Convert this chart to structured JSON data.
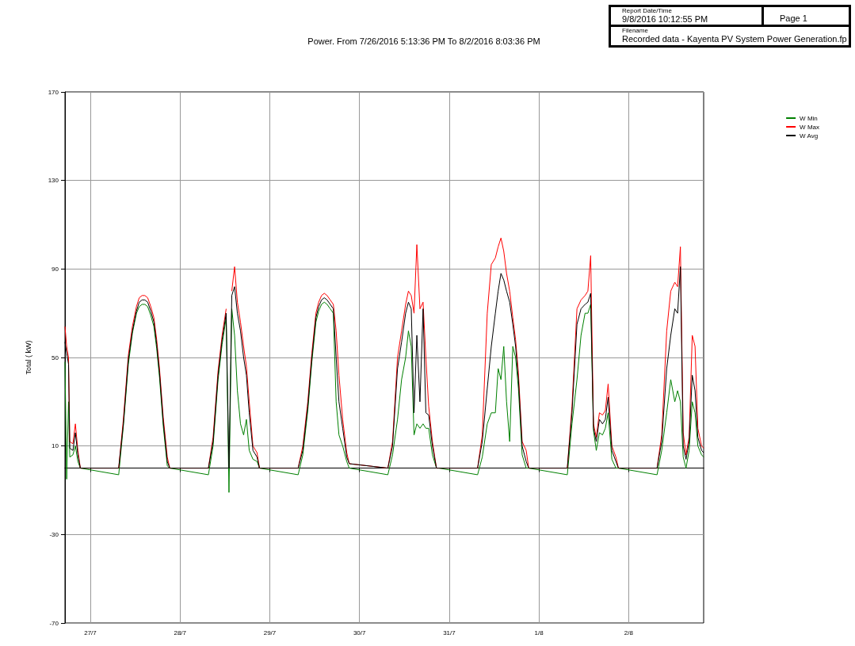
{
  "chart_data": {
    "type": "line",
    "title": "Power. From 7/26/2016 5:13:36 PM To 8/2/2016 8:03:36 PM",
    "ylabel": "Total ( kW)",
    "annotations": [
      "Report Date/Time",
      "9/8/2016 10:12:55 PM",
      "Page 1",
      "Filename",
      "Recorded data - Kayenta PV System Power Generation.fp"
    ],
    "x": [
      "2016-07-26T17:13",
      "2016-07-26T17:40",
      "2016-07-26T18:10",
      "2016-07-26T18:30",
      "2016-07-26T19:20",
      "2016-07-26T20:00",
      "2016-07-26T20:40",
      "2016-07-26T21:20",
      "2016-07-27T07:35",
      "2016-07-27T08:50",
      "2016-07-27T10:10",
      "2016-07-27T11:15",
      "2016-07-27T12:20",
      "2016-07-27T13:05",
      "2016-07-27T13:50",
      "2016-07-27T14:35",
      "2016-07-27T15:20",
      "2016-07-27T16:10",
      "2016-07-27T17:00",
      "2016-07-27T17:45",
      "2016-07-27T18:30",
      "2016-07-27T19:30",
      "2016-07-27T20:35",
      "2016-07-27T21:15",
      "2016-07-28T07:35",
      "2016-07-28T08:50",
      "2016-07-28T10:10",
      "2016-07-28T11:15",
      "2016-07-28T12:20",
      "2016-07-28T13:05",
      "2016-07-28T13:50",
      "2016-07-28T14:35",
      "2016-07-28T15:20",
      "2016-07-28T16:10",
      "2016-07-28T17:00",
      "2016-07-28T17:45",
      "2016-07-28T18:30",
      "2016-07-28T19:30",
      "2016-07-28T20:35",
      "2016-07-28T21:15",
      "2016-07-29T07:35",
      "2016-07-29T08:50",
      "2016-07-29T10:10",
      "2016-07-29T11:15",
      "2016-07-29T12:20",
      "2016-07-29T13:05",
      "2016-07-29T13:50",
      "2016-07-29T14:35",
      "2016-07-29T15:20",
      "2016-07-29T16:10",
      "2016-07-29T17:00",
      "2016-07-29T17:45",
      "2016-07-29T18:30",
      "2016-07-29T19:30",
      "2016-07-29T20:35",
      "2016-07-29T21:15",
      "2016-07-30T07:35",
      "2016-07-30T08:50",
      "2016-07-30T10:10",
      "2016-07-30T11:15",
      "2016-07-30T12:20",
      "2016-07-30T13:05",
      "2016-07-30T13:50",
      "2016-07-30T14:35",
      "2016-07-30T15:20",
      "2016-07-30T16:10",
      "2016-07-30T17:00",
      "2016-07-30T17:45",
      "2016-07-30T18:30",
      "2016-07-30T19:30",
      "2016-07-30T20:35",
      "2016-07-30T21:15",
      "2016-07-31T07:35",
      "2016-07-31T08:50",
      "2016-07-31T10:10",
      "2016-07-31T11:15",
      "2016-07-31T12:20",
      "2016-07-31T13:05",
      "2016-07-31T13:50",
      "2016-07-31T14:35",
      "2016-07-31T15:20",
      "2016-07-31T16:10",
      "2016-07-31T17:00",
      "2016-07-31T17:45",
      "2016-07-31T18:30",
      "2016-07-31T19:30",
      "2016-07-31T20:35",
      "2016-07-31T21:15",
      "2016-08-01T07:35",
      "2016-08-01T08:50",
      "2016-08-01T10:10",
      "2016-08-01T11:15",
      "2016-08-01T12:20",
      "2016-08-01T13:05",
      "2016-08-01T13:50",
      "2016-08-01T14:35",
      "2016-08-01T15:20",
      "2016-08-01T16:10",
      "2016-08-01T17:00",
      "2016-08-01T17:45",
      "2016-08-01T18:30",
      "2016-08-01T19:30",
      "2016-08-01T20:35",
      "2016-08-01T21:15",
      "2016-08-02T07:35",
      "2016-08-02T08:50",
      "2016-08-02T10:10",
      "2016-08-02T11:15",
      "2016-08-02T12:20",
      "2016-08-02T13:05",
      "2016-08-02T13:50",
      "2016-08-02T14:35",
      "2016-08-02T15:20",
      "2016-08-02T16:10",
      "2016-08-02T17:00",
      "2016-08-02T17:45",
      "2016-08-02T18:30",
      "2016-08-02T19:30",
      "2016-08-02T20:03"
    ],
    "series": [
      {
        "name": "W Min",
        "color": "#008000",
        "values": [
          48,
          -5,
          30,
          5,
          6,
          10,
          3,
          0,
          -3,
          19,
          47,
          61,
          70,
          73,
          74,
          74,
          73,
          69,
          64,
          54,
          41,
          19,
          1,
          0,
          -3,
          10,
          40,
          56,
          68,
          -11,
          72,
          60,
          35,
          20,
          15,
          22,
          8,
          4,
          3,
          0,
          -3,
          6,
          26,
          48,
          66,
          71,
          74,
          75,
          74,
          72,
          70,
          30,
          15,
          10,
          3,
          0,
          -3,
          6,
          22,
          40,
          50,
          62,
          55,
          15,
          20,
          18,
          20,
          18,
          18,
          6,
          0,
          0,
          -3,
          5,
          20,
          25,
          25,
          45,
          40,
          55,
          30,
          12,
          55,
          50,
          36,
          6,
          0,
          0,
          -3,
          20,
          40,
          60,
          70,
          70,
          74,
          17,
          8,
          16,
          15,
          18,
          25,
          4,
          0,
          0,
          -3,
          8,
          25,
          40,
          30,
          35,
          30,
          5,
          0,
          8,
          30,
          25,
          10,
          6,
          5
        ]
      },
      {
        "name": "W Max",
        "color": "#ff0000",
        "values": [
          64,
          55,
          50,
          12,
          11,
          20,
          8,
          0,
          0,
          22,
          51,
          64,
          73,
          77,
          78,
          78,
          77,
          73,
          68,
          58,
          45,
          23,
          5,
          0,
          0,
          14,
          44,
          60,
          72,
          null,
          80,
          91,
          75,
          66,
          55,
          46,
          30,
          10,
          7,
          0,
          0,
          10,
          30,
          52,
          70,
          75,
          78,
          79,
          78,
          76,
          74,
          62,
          42,
          22,
          7,
          2,
          0,
          12,
          50,
          62,
          74,
          80,
          78,
          70,
          101,
          72,
          75,
          50,
          28,
          12,
          0,
          0,
          0,
          15,
          70,
          92,
          95,
          100,
          104,
          98,
          88,
          80,
          68,
          58,
          43,
          12,
          8,
          0,
          0,
          28,
          72,
          76,
          78,
          80,
          96,
          20,
          14,
          25,
          24,
          26,
          38,
          10,
          5,
          0,
          0,
          15,
          62,
          80,
          84,
          82,
          100,
          16,
          6,
          14,
          60,
          55,
          18,
          10,
          9
        ]
      },
      {
        "name": "W Avg",
        "color": "#000000",
        "values": [
          57,
          52,
          47,
          9,
          8,
          16,
          6,
          0,
          0,
          20,
          49,
          62,
          71,
          75,
          76,
          76,
          75,
          71,
          66,
          56,
          43,
          21,
          3,
          0,
          0,
          12,
          42,
          58,
          70,
          0,
          78,
          82,
          70,
          62,
          50,
          42,
          25,
          8,
          5,
          0,
          0,
          8,
          28,
          50,
          68,
          73,
          76,
          77,
          76,
          74,
          72,
          50,
          30,
          18,
          5,
          2,
          0,
          10,
          45,
          57,
          70,
          75,
          72,
          25,
          60,
          30,
          72,
          25,
          24,
          10,
          0,
          0,
          0,
          12,
          36,
          55,
          70,
          80,
          88,
          85,
          80,
          75,
          65,
          55,
          40,
          10,
          3,
          0,
          0,
          25,
          65,
          72,
          74,
          75,
          79,
          18,
          12,
          22,
          20,
          22,
          32,
          8,
          3,
          0,
          0,
          12,
          45,
          60,
          72,
          70,
          91,
          10,
          4,
          12,
          42,
          35,
          14,
          8,
          7
        ]
      }
    ],
    "xlim": [
      "2016-07-26T17:13",
      "2016-08-02T20:03"
    ],
    "xticks": [
      {
        "value": "2016-07-27",
        "label": "27/7"
      },
      {
        "value": "2016-07-28",
        "label": "28/7"
      },
      {
        "value": "2016-07-29",
        "label": "29/7"
      },
      {
        "value": "2016-07-30",
        "label": "30/7"
      },
      {
        "value": "2016-07-31",
        "label": "31/7"
      },
      {
        "value": "2016-08-01",
        "label": "1/8"
      },
      {
        "value": "2016-08-02",
        "label": "2/8"
      }
    ],
    "ylim": [
      -70,
      170
    ],
    "yticks": [
      -70,
      -30,
      10,
      50,
      90,
      130,
      170
    ],
    "grid": true,
    "legend": "top right",
    "marker": "none",
    "line_style": "solid"
  }
}
